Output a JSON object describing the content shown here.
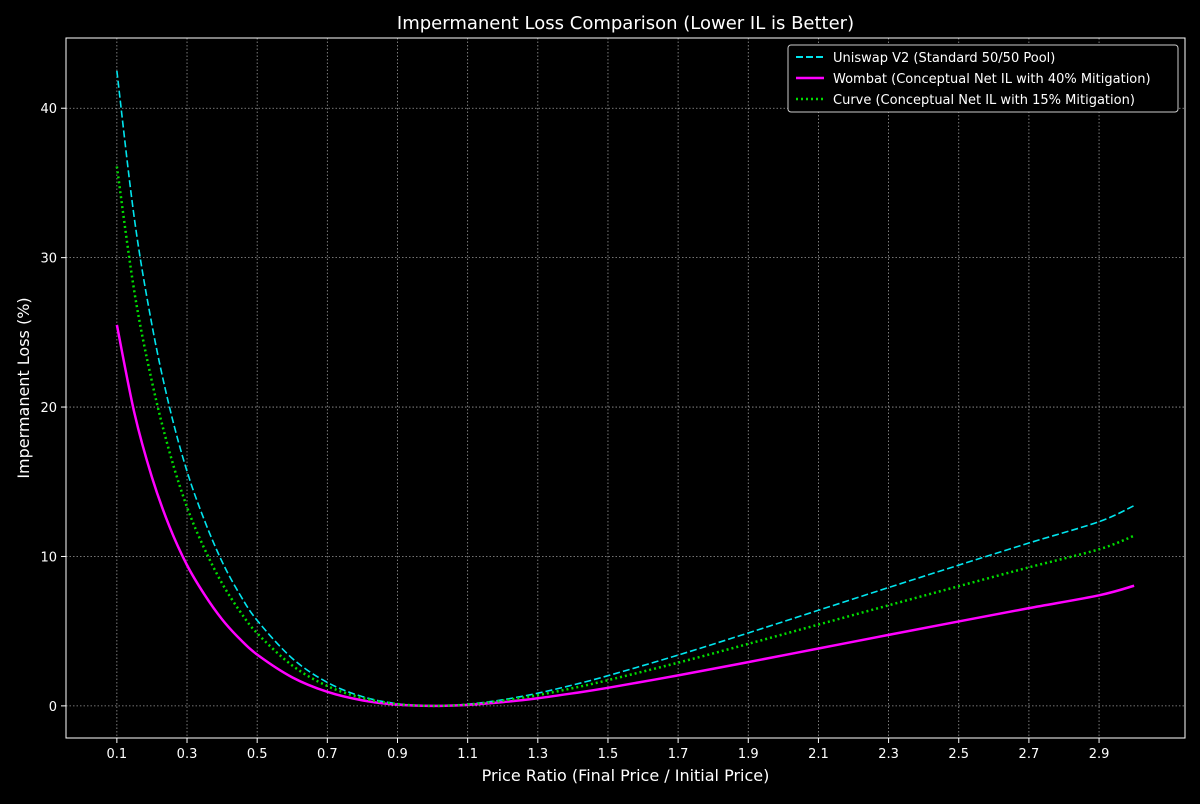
{
  "chart_data": {
    "type": "line",
    "title": "Impermanent Loss Comparison (Lower IL is Better)",
    "xlabel": "Price Ratio (Final Price / Initial Price)",
    "ylabel": "Impermanent Loss (%)",
    "xlim": [
      -0.045,
      3.145
    ],
    "ylim": [
      -2.15,
      44.7
    ],
    "x_ticks": [
      "0.1",
      "0.3",
      "0.5",
      "0.7",
      "0.9",
      "1.1",
      "1.3",
      "1.5",
      "1.7",
      "1.9",
      "2.1",
      "2.3",
      "2.5",
      "2.7",
      "2.9"
    ],
    "y_ticks": [
      "0",
      "10",
      "20",
      "30",
      "40"
    ],
    "grid": true,
    "legend_position": "top-right",
    "series": [
      {
        "name": "Uniswap V2 (Standard 50/50 Pool)",
        "color": "#00e5ee",
        "style": "dashed",
        "x": [
          0.1,
          0.15,
          0.2,
          0.25,
          0.3,
          0.35,
          0.4,
          0.45,
          0.5,
          0.6,
          0.7,
          0.8,
          0.9,
          1.0,
          1.1,
          1.2,
          1.3,
          1.4,
          1.5,
          1.7,
          1.9,
          2.1,
          2.3,
          2.5,
          2.7,
          2.9,
          3.0
        ],
        "y": [
          42.5,
          32.6,
          25.5,
          20.0,
          15.7,
          12.4,
          9.65,
          7.48,
          5.72,
          3.18,
          1.57,
          0.62,
          0.14,
          0.0,
          0.11,
          0.41,
          0.85,
          1.4,
          2.02,
          3.4,
          4.88,
          6.4,
          7.92,
          9.42,
          10.9,
          12.33,
          13.4
        ]
      },
      {
        "name": "Wombat (Conceptual Net IL with 40% Mitigation)",
        "color": "#ff00ff",
        "style": "solid",
        "x": [
          0.1,
          0.15,
          0.2,
          0.25,
          0.3,
          0.35,
          0.4,
          0.45,
          0.5,
          0.6,
          0.7,
          0.8,
          0.9,
          1.0,
          1.1,
          1.2,
          1.3,
          1.4,
          1.5,
          1.7,
          1.9,
          2.1,
          2.3,
          2.5,
          2.7,
          2.9,
          3.0
        ],
        "y": [
          25.5,
          19.6,
          15.3,
          12.0,
          9.42,
          7.44,
          5.79,
          4.49,
          3.43,
          1.91,
          0.94,
          0.37,
          0.08,
          0.0,
          0.07,
          0.25,
          0.51,
          0.84,
          1.21,
          2.04,
          2.93,
          3.84,
          4.75,
          5.65,
          6.54,
          7.4,
          8.04
        ]
      },
      {
        "name": "Curve (Conceptual Net IL with 15% Mitigation)",
        "color": "#00dd00",
        "style": "dotted",
        "x": [
          0.1,
          0.15,
          0.2,
          0.25,
          0.3,
          0.35,
          0.4,
          0.45,
          0.5,
          0.6,
          0.7,
          0.8,
          0.9,
          1.0,
          1.1,
          1.2,
          1.3,
          1.4,
          1.5,
          1.7,
          1.9,
          2.1,
          2.3,
          2.5,
          2.7,
          2.9,
          3.0
        ],
        "y": [
          36.1,
          27.7,
          21.7,
          17.0,
          13.3,
          10.5,
          8.2,
          6.36,
          4.86,
          2.7,
          1.33,
          0.53,
          0.12,
          0.0,
          0.09,
          0.35,
          0.72,
          1.19,
          1.72,
          2.89,
          4.15,
          5.44,
          6.73,
          8.01,
          9.27,
          10.48,
          11.39
        ]
      }
    ]
  }
}
